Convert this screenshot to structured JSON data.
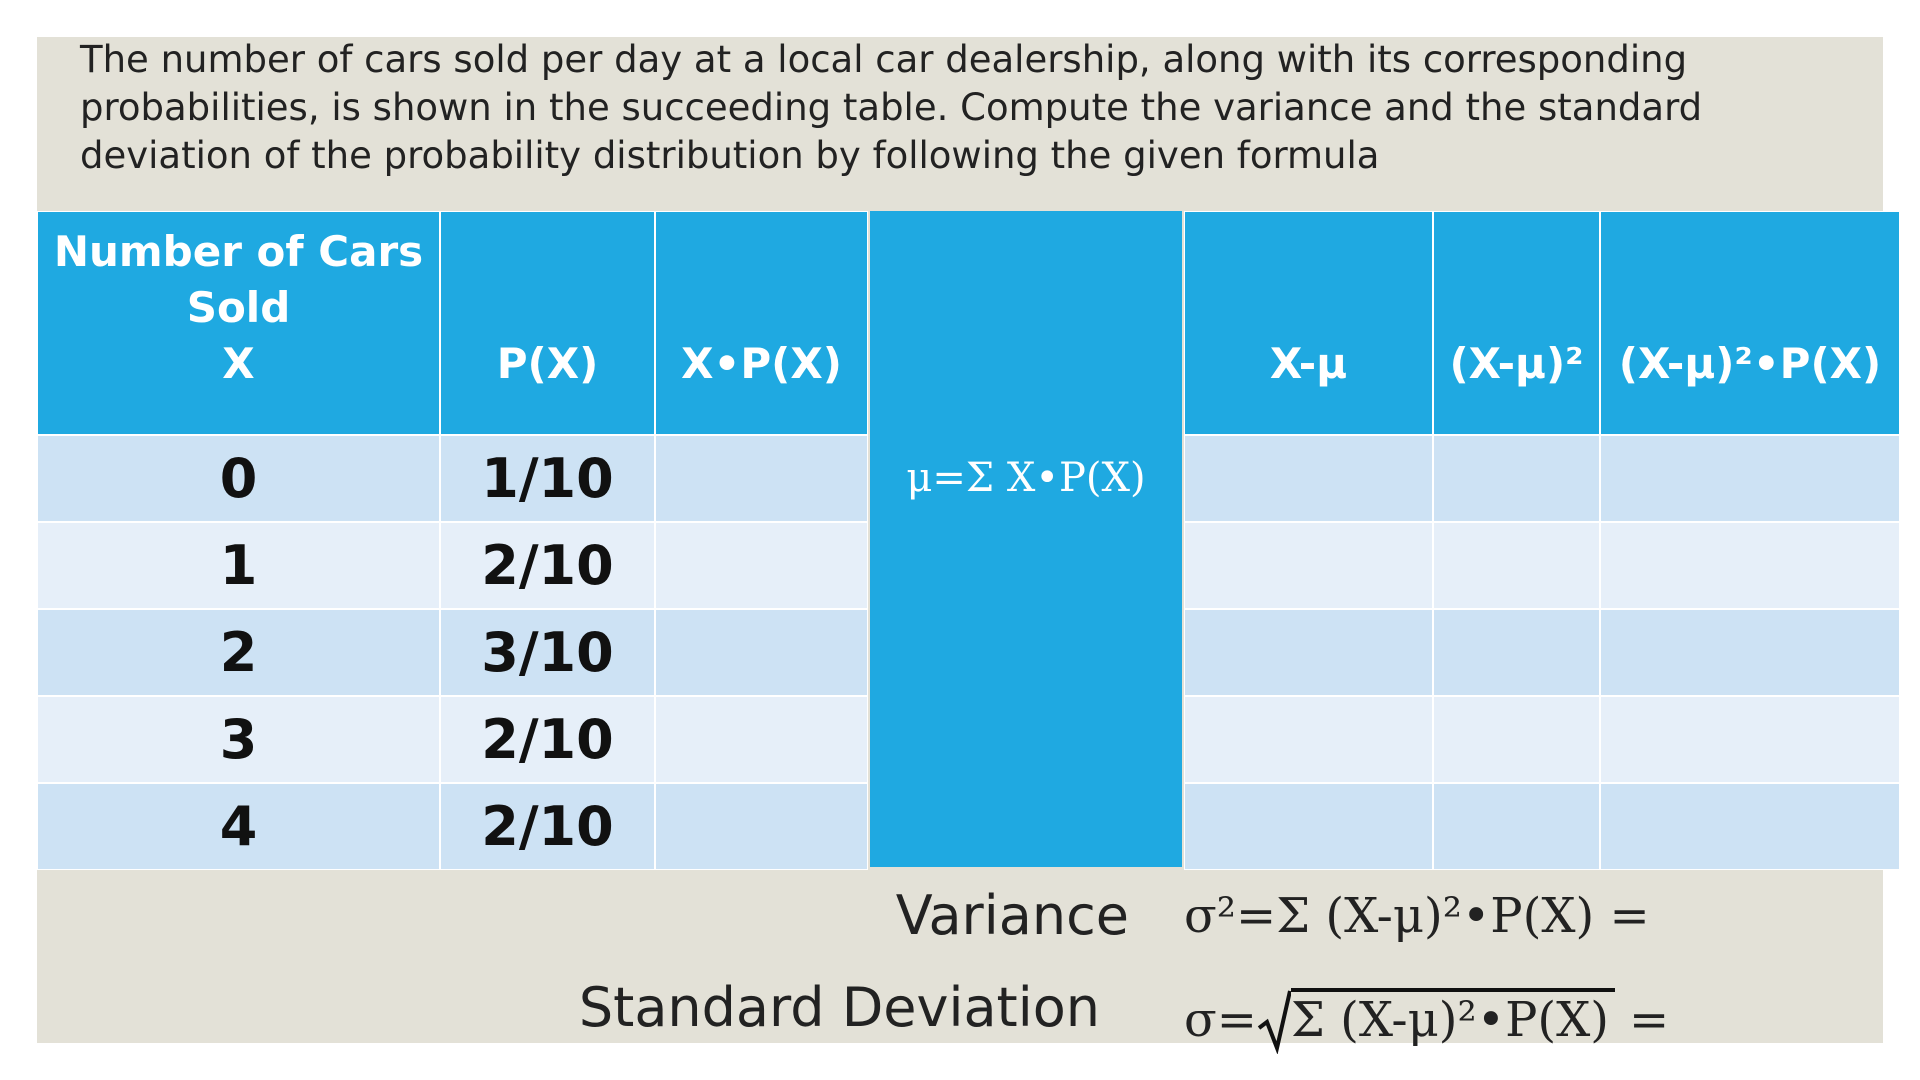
{
  "problem": {
    "lines": [
      "The number of cars sold per day at a local car dealership, along with its corresponding",
      "probabilities, is shown in the succeeding table. Compute the variance and the standard",
      "deviation of the probability distribution by following the given formula"
    ]
  },
  "table": {
    "headers": [
      [
        "Number of Cars",
        "Sold",
        "X"
      ],
      "P(X)",
      "X•P(X)",
      "X-μ",
      "(X-μ)²",
      "(X-μ)²•P(X)"
    ],
    "rows": [
      [
        0,
        "1/10"
      ],
      [
        1,
        "2/10"
      ],
      [
        2,
        "3/10"
      ],
      [
        3,
        "2/10"
      ],
      [
        4,
        "2/10"
      ]
    ],
    "mean_formula": "μ=Σ X•P(X)"
  },
  "variance": {
    "label": "Variance",
    "formula": "σ²=Σ (X-μ)²•P(X) ="
  },
  "standard_deviation": {
    "label": "Standard Deviation",
    "prefix": "σ=",
    "radicand": "Σ (X-μ)²•P(X)",
    "suffix": "="
  }
}
